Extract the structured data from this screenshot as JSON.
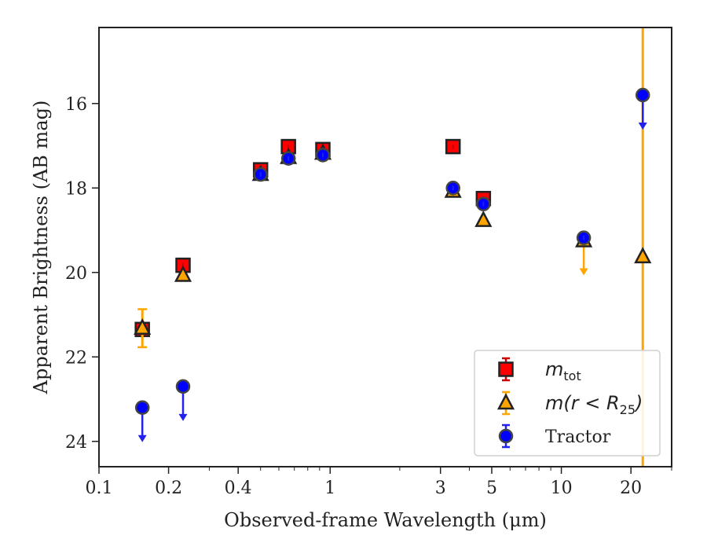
{
  "chart_data": {
    "type": "scatter",
    "xlabel": "Observed-frame Wavelength (μm)",
    "ylabel": "Apparent Brightness (AB mag)",
    "xscale": "log",
    "xlim": [
      0.1,
      30
    ],
    "ylim": [
      24.6,
      14.2
    ],
    "y_inverted": true,
    "xticks": [
      0.1,
      0.2,
      0.4,
      1,
      3,
      5,
      10,
      20
    ],
    "xtick_labels": [
      "0.1",
      "0.2",
      "0.4",
      "1",
      "3",
      "5",
      "10",
      "20"
    ],
    "yticks": [
      16,
      18,
      20,
      22,
      24
    ],
    "ytick_labels": [
      "16",
      "18",
      "20",
      "22",
      "24"
    ],
    "grid": false,
    "legend_position": "bottom-right",
    "series": [
      {
        "name": "m_tot",
        "marker": "square",
        "color": "#ff0000",
        "edge_color": "#222222",
        "errbar_color": "#cc0000",
        "points": [
          {
            "x": 0.154,
            "y": 21.35
          },
          {
            "x": 0.231,
            "y": 19.83
          },
          {
            "x": 0.5,
            "y": 17.57
          },
          {
            "x": 0.66,
            "y": 17.02
          },
          {
            "x": 0.93,
            "y": 17.09
          },
          {
            "x": 3.4,
            "y": 17.02
          },
          {
            "x": 4.6,
            "y": 18.25
          }
        ]
      },
      {
        "name": "m(r < R25)",
        "marker": "triangle",
        "color": "#ffa500",
        "edge_color": "#222222",
        "errbar_color": "#ffa500",
        "points": [
          {
            "x": 0.154,
            "y": 21.32,
            "yerr": 0.45
          },
          {
            "x": 0.231,
            "y": 20.07
          },
          {
            "x": 0.5,
            "y": 17.68
          },
          {
            "x": 0.66,
            "y": 17.28
          },
          {
            "x": 0.93,
            "y": 17.18
          },
          {
            "x": 3.4,
            "y": 18.08
          },
          {
            "x": 4.6,
            "y": 18.77
          },
          {
            "x": 12.5,
            "y": 19.25,
            "upper_limit": true
          },
          {
            "x": 22.5,
            "y": 19.63,
            "yerr": 20
          }
        ]
      },
      {
        "name": "Tractor",
        "marker": "circle",
        "color": "#0000ff",
        "edge_color": "#444444",
        "errbar_color": "#2222ee",
        "points": [
          {
            "x": 0.154,
            "y": 23.2,
            "upper_limit": true
          },
          {
            "x": 0.231,
            "y": 22.7,
            "upper_limit": true
          },
          {
            "x": 0.5,
            "y": 17.68
          },
          {
            "x": 0.66,
            "y": 17.3
          },
          {
            "x": 0.93,
            "y": 17.22
          },
          {
            "x": 3.4,
            "y": 18.0
          },
          {
            "x": 4.6,
            "y": 18.38
          },
          {
            "x": 12.5,
            "y": 19.18
          },
          {
            "x": 22.5,
            "y": 15.8,
            "upper_limit": true
          }
        ]
      }
    ],
    "legend": [
      {
        "label_main": "m",
        "label_sub": "tot",
        "marker": "square"
      },
      {
        "label_main": "m(r < R",
        "label_sub": "25",
        "label_end": ")",
        "marker": "triangle"
      },
      {
        "label_main": "Tractor",
        "marker": "circle"
      }
    ]
  }
}
